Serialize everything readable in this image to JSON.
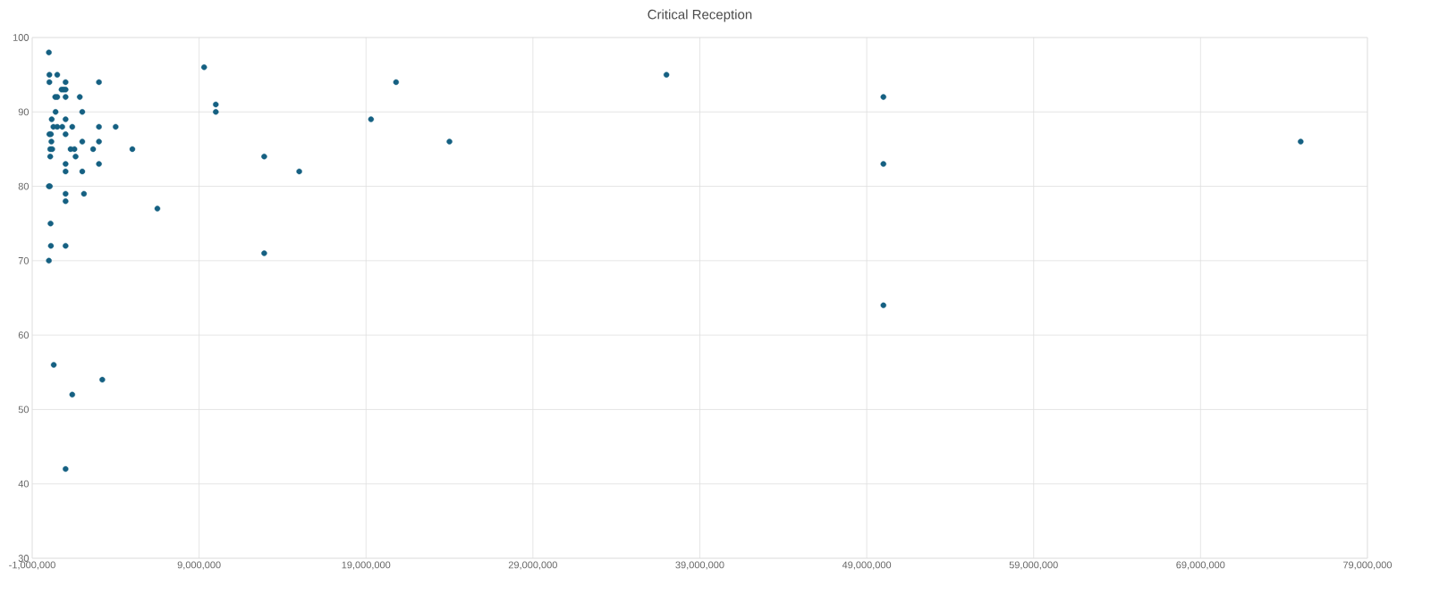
{
  "chart_data": {
    "type": "scatter",
    "title": "Critical Reception",
    "x": [
      0,
      500000,
      30000,
      1000000,
      3000000,
      760000,
      880000,
      1000000,
      380000,
      500000,
      1000000,
      1850000,
      400000,
      2000000,
      170000,
      1000000,
      270000,
      500000,
      800000,
      1400000,
      3000000,
      4000000,
      30000,
      120000,
      1000000,
      150000,
      2000000,
      3000000,
      80000,
      200000,
      1300000,
      1530000,
      2650000,
      5000000,
      80000,
      1600000,
      1000000,
      3000000,
      1000000,
      2000000,
      0,
      60000,
      1000000,
      2100000,
      1000000,
      6500000,
      100000,
      120000,
      1000000,
      0,
      9300000,
      10000000,
      10000000,
      290000,
      1400000,
      3200000,
      1000000,
      12900000,
      12900000,
      15000000,
      19300000,
      20800000,
      24000000,
      37000000,
      50000000,
      50000000,
      50000000,
      75000000,
      30000
    ],
    "values": [
      98,
      95,
      94,
      94,
      94,
      93,
      93,
      93,
      92,
      92,
      92,
      92,
      90,
      90,
      89,
      89,
      88,
      88,
      88,
      88,
      88,
      88,
      87,
      87,
      87,
      86,
      86,
      86,
      85,
      85,
      85,
      85,
      85,
      85,
      84,
      84,
      83,
      83,
      82,
      82,
      80,
      80,
      79,
      79,
      78,
      77,
      75,
      72,
      72,
      70,
      96,
      91,
      90,
      56,
      52,
      54,
      42,
      84,
      71,
      82,
      89,
      94,
      86,
      95,
      92,
      83,
      64,
      86,
      95
    ],
    "color": "#156082",
    "marker": "circle",
    "grid": true,
    "xlim": [
      -1000000,
      79000000
    ],
    "xticks": [
      {
        "value": -1000000,
        "label": "-1,000,000"
      },
      {
        "value": 9000000,
        "label": "9,000,000"
      },
      {
        "value": 19000000,
        "label": "19,000,000"
      },
      {
        "value": 29000000,
        "label": "29,000,000"
      },
      {
        "value": 39000000,
        "label": "39,000,000"
      },
      {
        "value": 49000000,
        "label": "49,000,000"
      },
      {
        "value": 59000000,
        "label": "59,000,000"
      },
      {
        "value": 69000000,
        "label": "69,000,000"
      },
      {
        "value": 79000000,
        "label": "79,000,000"
      }
    ],
    "ylim": [
      30,
      100
    ],
    "yticks": [
      30,
      40,
      50,
      60,
      70,
      80,
      90,
      100
    ]
  }
}
